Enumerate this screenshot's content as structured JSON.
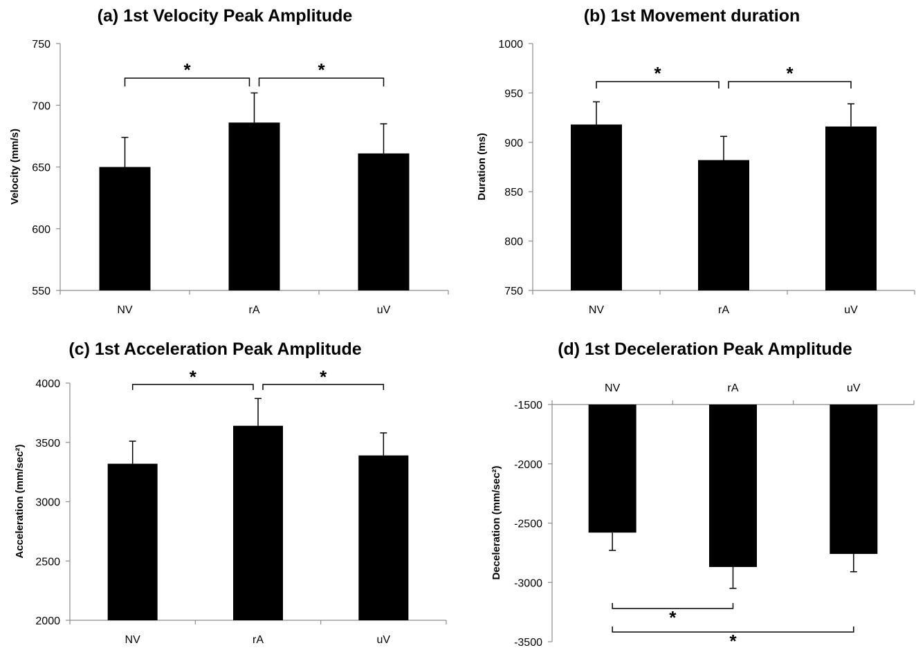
{
  "chart_data": [
    {
      "type": "bar",
      "title": "(a) 1st Velocity Peak Amplitude",
      "xlabel": "",
      "ylabel": "Velocity (mm/s)",
      "categories": [
        "NV",
        "rA",
        "uV"
      ],
      "values": [
        650,
        686,
        661
      ],
      "errors": [
        24,
        24,
        24
      ],
      "ylim": [
        550,
        750
      ],
      "yticks": [
        "550",
        "600",
        "650",
        "700",
        "750"
      ],
      "significance": [
        {
          "from": "NV",
          "to": "rA",
          "label": "*"
        },
        {
          "from": "rA",
          "to": "uV",
          "label": "*"
        }
      ],
      "grid": false
    },
    {
      "type": "bar",
      "title": "(b) 1st Movement duration",
      "xlabel": "",
      "ylabel": "Duration (ms)",
      "categories": [
        "NV",
        "rA",
        "uV"
      ],
      "values": [
        918,
        882,
        916
      ],
      "errors": [
        23,
        24,
        23
      ],
      "ylim": [
        750,
        1000
      ],
      "yticks": [
        "750",
        "800",
        "850",
        "900",
        "950",
        "1000"
      ],
      "significance": [
        {
          "from": "NV",
          "to": "rA",
          "label": "*"
        },
        {
          "from": "rA",
          "to": "uV",
          "label": "*"
        }
      ],
      "grid": false
    },
    {
      "type": "bar",
      "title": "(c) 1st Acceleration Peak Amplitude",
      "xlabel": "",
      "ylabel": "Acceleration (mm/sec²)",
      "categories": [
        "NV",
        "rA",
        "uV"
      ],
      "values": [
        3320,
        3640,
        3390
      ],
      "errors": [
        190,
        230,
        190
      ],
      "ylim": [
        2000,
        4000
      ],
      "yticks": [
        "2000",
        "2500",
        "3000",
        "3500",
        "4000"
      ],
      "significance": [
        {
          "from": "NV",
          "to": "rA",
          "label": "*"
        },
        {
          "from": "rA",
          "to": "uV",
          "label": "*"
        }
      ],
      "grid": false
    },
    {
      "type": "bar",
      "title": "(d) 1st Deceleration Peak Amplitude",
      "xlabel": "",
      "ylabel": "Deceleration (mm/sec²)",
      "categories": [
        "NV",
        "rA",
        "uV"
      ],
      "values": [
        -2580,
        -2870,
        -2760
      ],
      "errors": [
        150,
        180,
        150
      ],
      "ylim": [
        -3500,
        -1500
      ],
      "yticks": [
        "-3500",
        "-3000",
        "-2500",
        "-2000",
        "-1500"
      ],
      "significance": [
        {
          "from": "NV",
          "to": "rA",
          "label": "*"
        },
        {
          "from": "NV",
          "to": "uV",
          "label": "*"
        }
      ],
      "grid": false
    }
  ],
  "colors": {
    "bar": "#000000",
    "axis": "#8c8c8c",
    "text": "#000000"
  }
}
